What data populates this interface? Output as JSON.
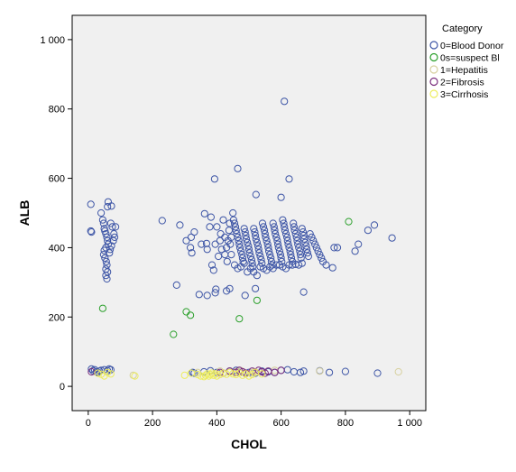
{
  "chart_data": {
    "type": "scatter",
    "title": "",
    "xlabel": "CHOL",
    "ylabel": "ALB",
    "xlim": [
      -50,
      1050
    ],
    "ylim": [
      -70,
      1070
    ],
    "xticks": [
      0,
      200,
      400,
      600,
      800,
      1000
    ],
    "yticks": [
      0,
      200,
      400,
      600,
      800,
      1000
    ],
    "xtick_labels": [
      "0",
      "200",
      "400",
      "600",
      "800",
      "1 000"
    ],
    "ytick_labels": [
      "0",
      "200",
      "400",
      "600",
      "800",
      "1 000"
    ],
    "grid": false,
    "marker": "open-circle",
    "plot_background": "#f0f0f0",
    "legend": {
      "title": "Category",
      "position": "top-right, outside plot"
    },
    "series": [
      {
        "name": "0=Blood Donor",
        "color": "#3d55a6",
        "points": [
          [
            8,
            525
          ],
          [
            8,
            448
          ],
          [
            10,
            445
          ],
          [
            40,
            500
          ],
          [
            45,
            480
          ],
          [
            48,
            470
          ],
          [
            50,
            455
          ],
          [
            52,
            448
          ],
          [
            55,
            440
          ],
          [
            58,
            430
          ],
          [
            60,
            420
          ],
          [
            62,
            410
          ],
          [
            55,
            400
          ],
          [
            50,
            392
          ],
          [
            48,
            380
          ],
          [
            52,
            370
          ],
          [
            56,
            360
          ],
          [
            58,
            350
          ],
          [
            55,
            338
          ],
          [
            60,
            330
          ],
          [
            55,
            320
          ],
          [
            58,
            310
          ],
          [
            62,
            532
          ],
          [
            60,
            518
          ],
          [
            72,
            520
          ],
          [
            70,
            470
          ],
          [
            75,
            460
          ],
          [
            80,
            440
          ],
          [
            82,
            430
          ],
          [
            78,
            420
          ],
          [
            85,
            460
          ],
          [
            68,
            395
          ],
          [
            72,
            405
          ],
          [
            66,
            385
          ],
          [
            10,
            50
          ],
          [
            15,
            45
          ],
          [
            20,
            48
          ],
          [
            25,
            42
          ],
          [
            30,
            40
          ],
          [
            35,
            44
          ],
          [
            40,
            46
          ],
          [
            50,
            48
          ],
          [
            60,
            45
          ],
          [
            65,
            50
          ],
          [
            70,
            48
          ],
          [
            230,
            478
          ],
          [
            275,
            292
          ],
          [
            285,
            465
          ],
          [
            305,
            420
          ],
          [
            318,
            400
          ],
          [
            322,
            385
          ],
          [
            320,
            430
          ],
          [
            330,
            445
          ],
          [
            345,
            265
          ],
          [
            352,
            410
          ],
          [
            362,
            498
          ],
          [
            368,
            412
          ],
          [
            370,
            395
          ],
          [
            378,
            460
          ],
          [
            382,
            488
          ],
          [
            385,
            350
          ],
          [
            390,
            335
          ],
          [
            393,
            598
          ],
          [
            397,
            280
          ],
          [
            400,
            460
          ],
          [
            410,
            420
          ],
          [
            412,
            440
          ],
          [
            420,
            480
          ],
          [
            425,
            430
          ],
          [
            430,
            400
          ],
          [
            432,
            360
          ],
          [
            438,
            450
          ],
          [
            440,
            470
          ],
          [
            442,
            410
          ],
          [
            445,
            380
          ],
          [
            450,
            500
          ],
          [
            452,
            480
          ],
          [
            455,
            470
          ],
          [
            458,
            460
          ],
          [
            460,
            450
          ],
          [
            462,
            440
          ],
          [
            465,
            430
          ],
          [
            468,
            420
          ],
          [
            470,
            410
          ],
          [
            472,
            400
          ],
          [
            475,
            390
          ],
          [
            478,
            380
          ],
          [
            480,
            370
          ],
          [
            482,
            360
          ],
          [
            485,
            455
          ],
          [
            488,
            445
          ],
          [
            490,
            435
          ],
          [
            492,
            425
          ],
          [
            495,
            415
          ],
          [
            498,
            405
          ],
          [
            500,
            395
          ],
          [
            502,
            385
          ],
          [
            505,
            375
          ],
          [
            508,
            365
          ],
          [
            510,
            355
          ],
          [
            512,
            345
          ],
          [
            515,
            455
          ],
          [
            518,
            445
          ],
          [
            520,
            435
          ],
          [
            522,
            425
          ],
          [
            525,
            415
          ],
          [
            528,
            405
          ],
          [
            530,
            395
          ],
          [
            532,
            385
          ],
          [
            535,
            375
          ],
          [
            538,
            365
          ],
          [
            540,
            355
          ],
          [
            542,
            470
          ],
          [
            545,
            460
          ],
          [
            548,
            450
          ],
          [
            550,
            440
          ],
          [
            552,
            430
          ],
          [
            555,
            420
          ],
          [
            558,
            410
          ],
          [
            560,
            400
          ],
          [
            562,
            390
          ],
          [
            565,
            380
          ],
          [
            568,
            370
          ],
          [
            570,
            360
          ],
          [
            572,
            350
          ],
          [
            575,
            470
          ],
          [
            578,
            460
          ],
          [
            580,
            450
          ],
          [
            582,
            440
          ],
          [
            585,
            430
          ],
          [
            588,
            420
          ],
          [
            590,
            410
          ],
          [
            592,
            400
          ],
          [
            595,
            390
          ],
          [
            598,
            380
          ],
          [
            600,
            370
          ],
          [
            602,
            360
          ],
          [
            605,
            480
          ],
          [
            608,
            470
          ],
          [
            610,
            460
          ],
          [
            612,
            450
          ],
          [
            615,
            440
          ],
          [
            618,
            430
          ],
          [
            620,
            420
          ],
          [
            622,
            410
          ],
          [
            625,
            400
          ],
          [
            628,
            390
          ],
          [
            630,
            380
          ],
          [
            632,
            370
          ],
          [
            635,
            360
          ],
          [
            638,
            470
          ],
          [
            640,
            460
          ],
          [
            642,
            450
          ],
          [
            645,
            440
          ],
          [
            648,
            430
          ],
          [
            650,
            420
          ],
          [
            652,
            410
          ],
          [
            655,
            400
          ],
          [
            658,
            390
          ],
          [
            660,
            380
          ],
          [
            662,
            370
          ],
          [
            665,
            455
          ],
          [
            668,
            445
          ],
          [
            670,
            435
          ],
          [
            672,
            425
          ],
          [
            675,
            415
          ],
          [
            678,
            405
          ],
          [
            680,
            395
          ],
          [
            682,
            385
          ],
          [
            685,
            375
          ],
          [
            690,
            440
          ],
          [
            695,
            430
          ],
          [
            700,
            420
          ],
          [
            705,
            410
          ],
          [
            710,
            400
          ],
          [
            715,
            390
          ],
          [
            720,
            380
          ],
          [
            725,
            370
          ],
          [
            730,
            360
          ],
          [
            740,
            350
          ],
          [
            760,
            342
          ],
          [
            765,
            400
          ],
          [
            775,
            400
          ],
          [
            395,
            410
          ],
          [
            405,
            375
          ],
          [
            415,
            395
          ],
          [
            425,
            380
          ],
          [
            435,
            420
          ],
          [
            445,
            430
          ],
          [
            455,
            350
          ],
          [
            465,
            340
          ],
          [
            475,
            345
          ],
          [
            485,
            355
          ],
          [
            495,
            330
          ],
          [
            505,
            340
          ],
          [
            515,
            330
          ],
          [
            525,
            320
          ],
          [
            535,
            345
          ],
          [
            545,
            340
          ],
          [
            555,
            335
          ],
          [
            565,
            345
          ],
          [
            575,
            340
          ],
          [
            585,
            350
          ],
          [
            595,
            350
          ],
          [
            605,
            345
          ],
          [
            615,
            340
          ],
          [
            625,
            350
          ],
          [
            635,
            350
          ],
          [
            645,
            352
          ],
          [
            655,
            350
          ],
          [
            665,
            355
          ],
          [
            610,
            822
          ],
          [
            465,
            628
          ],
          [
            625,
            598
          ],
          [
            522,
            553
          ],
          [
            600,
            545
          ],
          [
            670,
            272
          ],
          [
            370,
            262
          ],
          [
            395,
            270
          ],
          [
            430,
            275
          ],
          [
            440,
            282
          ],
          [
            488,
            262
          ],
          [
            520,
            282
          ],
          [
            830,
            390
          ],
          [
            840,
            410
          ],
          [
            870,
            450
          ],
          [
            890,
            465
          ],
          [
            945,
            428
          ],
          [
            325,
            40
          ],
          [
            330,
            38
          ],
          [
            360,
            42
          ],
          [
            380,
            45
          ],
          [
            400,
            40
          ],
          [
            420,
            38
          ],
          [
            440,
            44
          ],
          [
            460,
            46
          ],
          [
            480,
            42
          ],
          [
            500,
            40
          ],
          [
            520,
            38
          ],
          [
            540,
            44
          ],
          [
            560,
            42
          ],
          [
            580,
            40
          ],
          [
            600,
            46
          ],
          [
            620,
            48
          ],
          [
            640,
            42
          ],
          [
            660,
            40
          ],
          [
            670,
            44
          ],
          [
            720,
            45
          ],
          [
            750,
            40
          ],
          [
            800,
            43
          ],
          [
            900,
            38
          ]
        ]
      },
      {
        "name": "0s=suspect Bl",
        "color": "#2ca02c",
        "points": [
          [
            45,
            225
          ],
          [
            265,
            150
          ],
          [
            305,
            215
          ],
          [
            318,
            205
          ],
          [
            470,
            195
          ],
          [
            525,
            248
          ],
          [
            810,
            475
          ]
        ]
      },
      {
        "name": "1=Hepatitis",
        "color": "#d7d09e",
        "points": [
          [
            340,
            40
          ],
          [
            410,
            44
          ],
          [
            460,
            42
          ],
          [
            475,
            45
          ],
          [
            505,
            38
          ],
          [
            515,
            42
          ],
          [
            580,
            46
          ],
          [
            720,
            44
          ],
          [
            965,
            42
          ],
          [
            140,
            32
          ]
        ]
      },
      {
        "name": "2=Fibrosis",
        "color": "#7a2d7d",
        "points": [
          [
            10,
            42
          ],
          [
            410,
            40
          ],
          [
            420,
            38
          ],
          [
            440,
            44
          ],
          [
            460,
            40
          ],
          [
            470,
            46
          ],
          [
            480,
            42
          ],
          [
            490,
            38
          ],
          [
            510,
            44
          ],
          [
            520,
            40
          ],
          [
            530,
            46
          ],
          [
            540,
            42
          ],
          [
            550,
            38
          ],
          [
            560,
            44
          ],
          [
            580,
            40
          ],
          [
            600,
            46
          ]
        ]
      },
      {
        "name": "3=Cirrhosis",
        "color": "#eded5e",
        "points": [
          [
            30,
            38
          ],
          [
            40,
            35
          ],
          [
            50,
            30
          ],
          [
            60,
            40
          ],
          [
            70,
            36
          ],
          [
            145,
            30
          ],
          [
            300,
            32
          ],
          [
            320,
            38
          ],
          [
            340,
            34
          ],
          [
            350,
            30
          ],
          [
            360,
            28
          ],
          [
            365,
            32
          ],
          [
            370,
            36
          ],
          [
            375,
            30
          ],
          [
            380,
            34
          ],
          [
            385,
            38
          ],
          [
            390,
            32
          ],
          [
            395,
            36
          ],
          [
            400,
            30
          ],
          [
            410,
            34
          ],
          [
            420,
            38
          ],
          [
            430,
            35
          ],
          [
            440,
            40
          ],
          [
            450,
            36
          ],
          [
            460,
            34
          ],
          [
            470,
            38
          ],
          [
            480,
            32
          ],
          [
            490,
            36
          ],
          [
            500,
            30
          ],
          [
            510,
            34
          ],
          [
            520,
            40
          ],
          [
            540,
            36
          ]
        ]
      }
    ]
  }
}
